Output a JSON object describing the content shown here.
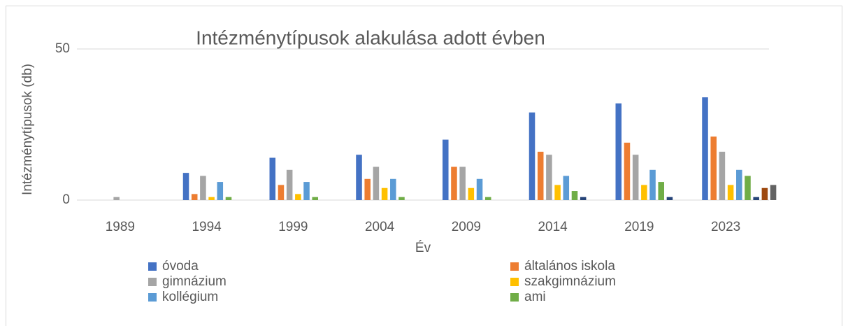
{
  "chart_data": {
    "type": "bar",
    "title": "Intézménytípusok alakulása adott évben",
    "x_label": "Év",
    "y_label": "Intézménytípusok (db)",
    "categories": [
      "1989",
      "1994",
      "1999",
      "2004",
      "2009",
      "2014",
      "2019",
      "2023"
    ],
    "series": [
      {
        "name": "óvoda",
        "color": "#4472c4",
        "values": [
          0,
          9,
          14,
          15,
          20,
          29,
          32,
          34
        ]
      },
      {
        "name": "általános iskola",
        "color": "#ed7d31",
        "values": [
          0,
          2,
          5,
          7,
          11,
          16,
          19,
          21
        ]
      },
      {
        "name": "gimnázium",
        "color": "#a5a5a5",
        "values": [
          1,
          8,
          10,
          11,
          11,
          15,
          15,
          16
        ]
      },
      {
        "name": "szakgimnázium",
        "color": "#ffc000",
        "values": [
          0,
          1,
          2,
          4,
          4,
          5,
          5,
          5
        ]
      },
      {
        "name": "kollégium",
        "color": "#5b9bd5",
        "values": [
          0,
          6,
          6,
          7,
          7,
          8,
          10,
          10
        ]
      },
      {
        "name": "ami",
        "color": "#70ad47",
        "values": [
          0,
          1,
          1,
          1,
          1,
          3,
          6,
          8
        ]
      },
      {
        "color": "#264478",
        "values": [
          0,
          0,
          0,
          0,
          0,
          1,
          1,
          1
        ]
      },
      {
        "color": "#9e480e",
        "values": [
          0,
          0,
          0,
          0,
          0,
          0,
          0,
          4
        ]
      },
      {
        "color": "#636363",
        "values": [
          0,
          0,
          0,
          0,
          0,
          0,
          0,
          5
        ]
      }
    ],
    "ylim": [
      0,
      50
    ],
    "yticks": [
      0,
      50
    ],
    "grid": true
  }
}
